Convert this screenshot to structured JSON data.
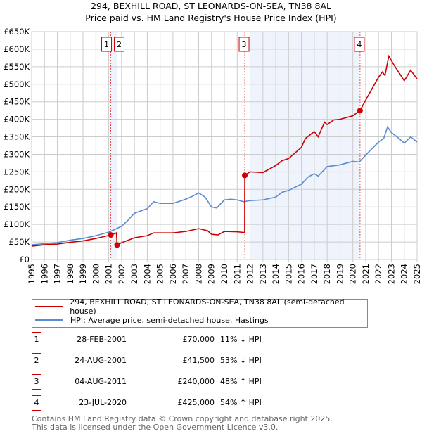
{
  "title": "294, BEXHILL ROAD, ST LEONARDS-ON-SEA, TN38 8AL",
  "subtitle": "Price paid vs. HM Land Registry's House Price Index (HPI)",
  "chart_data": {
    "type": "line",
    "title": "294, BEXHILL ROAD, ST LEONARDS-ON-SEA, TN38 8AL — Price paid vs. HM Land Registry's House Price Index (HPI)",
    "xlim": [
      1995,
      2025
    ],
    "ylim": [
      0,
      650000
    ],
    "y_ticks": [
      "£0",
      "£50K",
      "£100K",
      "£150K",
      "£200K",
      "£250K",
      "£300K",
      "£350K",
      "£400K",
      "£450K",
      "£500K",
      "£550K",
      "£600K",
      "£650K"
    ],
    "x_ticks": [
      "1995",
      "1996",
      "1997",
      "1998",
      "1999",
      "2000",
      "2001",
      "2002",
      "2003",
      "2004",
      "2005",
      "2006",
      "2007",
      "2008",
      "2009",
      "2010",
      "2011",
      "2012",
      "2013",
      "2014",
      "2015",
      "2016",
      "2017",
      "2018",
      "2019",
      "2020",
      "2021",
      "2022",
      "2023",
      "2024",
      "2025"
    ],
    "grid": true,
    "series": [
      {
        "name": "294, BEXHILL ROAD, ST LEONARDS-ON-SEA, TN38 8AL (semi-detached house)",
        "color": "#cc0000",
        "x": [
          1995,
          1996,
          1997,
          1998,
          1999,
          2000,
          2001.16,
          2001.6,
          2001.65,
          2002,
          2003,
          2004,
          2004.5,
          2006,
          2007,
          2008,
          2008.7,
          2009,
          2009.5,
          2010,
          2011,
          2011.58,
          2011.59,
          2012,
          2013,
          2014,
          2014.5,
          2015,
          2016,
          2016.3,
          2017,
          2017.3,
          2017.8,
          2018,
          2018.5,
          2019,
          2020,
          2020.56,
          2021,
          2022,
          2022.3,
          2022.5,
          2022.8,
          2023.2,
          2024,
          2024.5,
          2025
        ],
        "y": [
          38000,
          42000,
          44000,
          49000,
          53000,
          60000,
          70000,
          76000,
          41500,
          48000,
          62000,
          68000,
          76000,
          76000,
          80000,
          88000,
          82000,
          72000,
          70000,
          80000,
          79000,
          77000,
          240000,
          250000,
          248000,
          268000,
          282000,
          288000,
          320000,
          345000,
          365000,
          350000,
          392000,
          385000,
          398000,
          400000,
          410000,
          425000,
          455000,
          520000,
          535000,
          525000,
          580000,
          555000,
          510000,
          540000,
          515000
        ]
      },
      {
        "name": "HPI: Average price, semi-detached house, Hastings",
        "color": "#5b8bd0",
        "x": [
          1995,
          1996,
          1997,
          1998,
          1999,
          2000,
          2001,
          2001.6,
          2002,
          2002.5,
          2003,
          2004,
          2004.5,
          2005,
          2006,
          2007,
          2007.5,
          2008,
          2008.5,
          2009,
          2009.4,
          2010,
          2010.5,
          2011,
          2011.5,
          2012,
          2013,
          2014,
          2014.5,
          2015,
          2016,
          2016.5,
          2017,
          2017.3,
          2018,
          2019,
          2020,
          2020.5,
          2021,
          2022,
          2022.4,
          2022.7,
          2023,
          2023.5,
          2024,
          2024.5,
          2025
        ],
        "y": [
          42000,
          45000,
          48000,
          55000,
          60000,
          68000,
          78000,
          88000,
          95000,
          112000,
          132000,
          145000,
          165000,
          160000,
          160000,
          172000,
          180000,
          190000,
          178000,
          150000,
          147000,
          170000,
          172000,
          170000,
          165000,
          168000,
          170000,
          178000,
          192000,
          197000,
          215000,
          235000,
          245000,
          238000,
          265000,
          270000,
          280000,
          278000,
          298000,
          335000,
          345000,
          378000,
          362000,
          348000,
          332000,
          350000,
          335000
        ]
      }
    ],
    "sales": [
      {
        "n": "1",
        "x": 2001.16,
        "y": 70000,
        "date": "28-FEB-2001",
        "price": "£70,000",
        "hpi": "11% ↓ HPI"
      },
      {
        "n": "2",
        "x": 2001.65,
        "y": 41500,
        "date": "24-AUG-2001",
        "price": "£41,500",
        "hpi": "53% ↓ HPI"
      },
      {
        "n": "3",
        "x": 2011.59,
        "y": 240000,
        "date": "04-AUG-2011",
        "price": "£240,000",
        "hpi": "48% ↑ HPI"
      },
      {
        "n": "4",
        "x": 2020.56,
        "y": 425000,
        "date": "23-JUL-2020",
        "price": "£425,000",
        "hpi": "54% ↑ HPI"
      }
    ],
    "shaded": [
      [
        2001.16,
        2001.65
      ],
      [
        2012.0,
        2020.56
      ]
    ]
  },
  "legend": {
    "red": "294, BEXHILL ROAD, ST LEONARDS-ON-SEA, TN38 8AL (semi-detached house)",
    "blue": "HPI: Average price, semi-detached house, Hastings"
  },
  "footer": {
    "line1": "Contains HM Land Registry data © Crown copyright and database right 2025.",
    "line2": "This data is licensed under the Open Government Licence v3.0."
  }
}
